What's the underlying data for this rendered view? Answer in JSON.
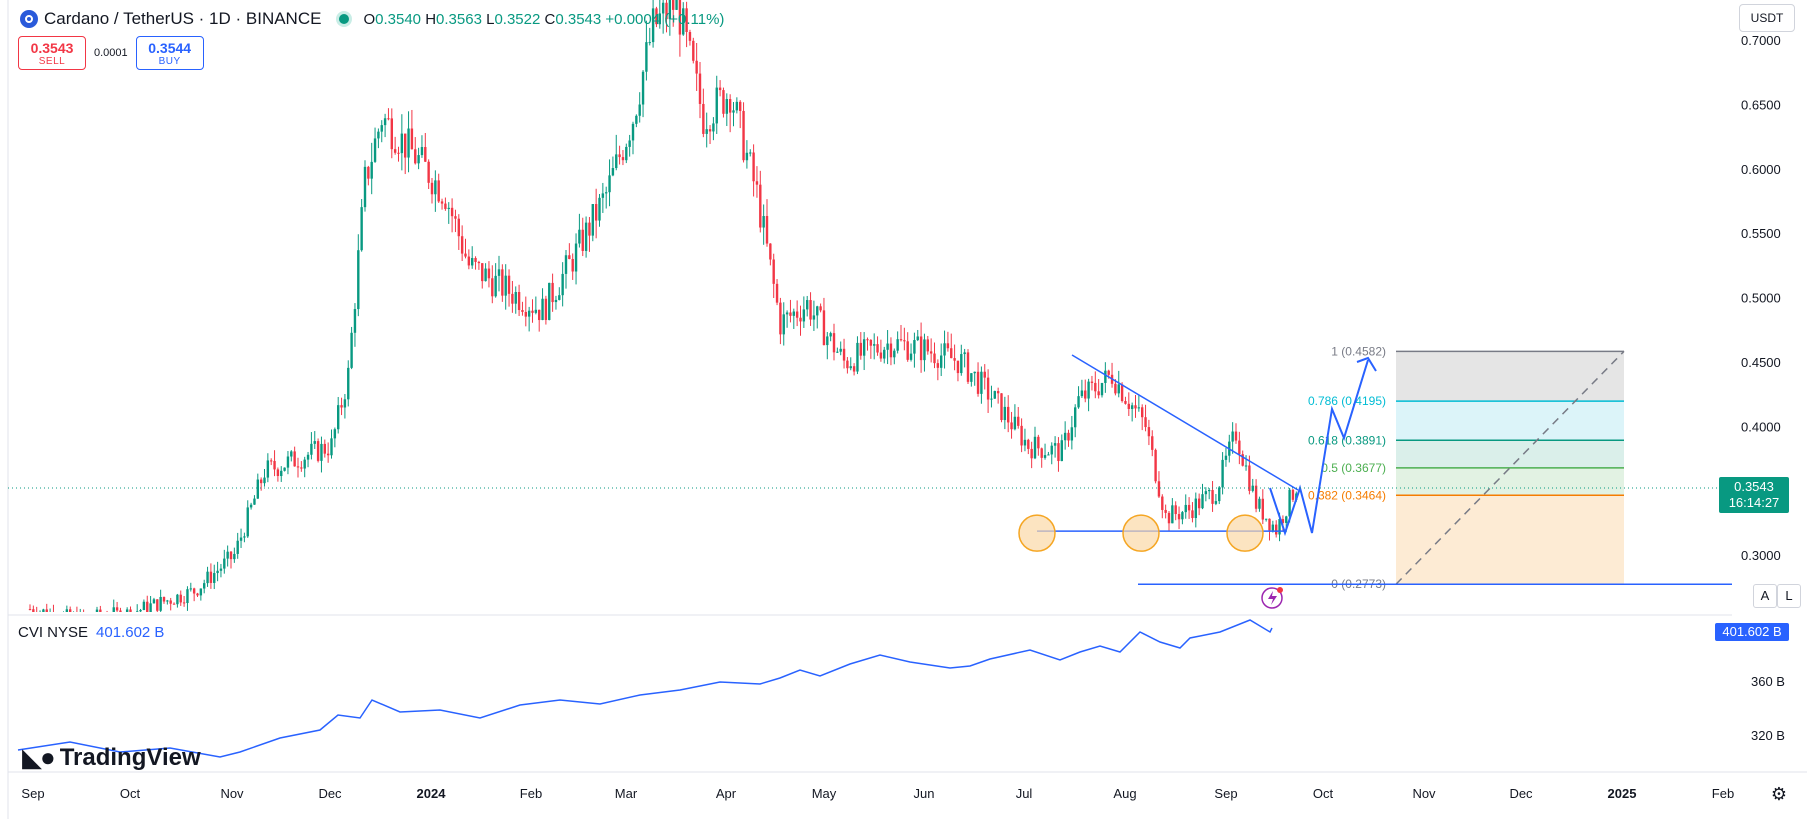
{
  "header": {
    "symbol_title": "Cardano / TetherUS · 1D · BINANCE",
    "ohlc": {
      "o_label": "O",
      "o": "0.3540",
      "h_label": "H",
      "h": "0.3563",
      "l_label": "L",
      "l": "0.3522",
      "c_label": "C",
      "c": "0.3543",
      "change": "+0.0004 (+0.11%)"
    },
    "sell": {
      "price": "0.3543",
      "label": "SELL"
    },
    "spread": "0.0001",
    "buy": {
      "price": "0.3544",
      "label": "BUY"
    },
    "currency": "USDT"
  },
  "price_axis": {
    "current_price": "0.3543",
    "countdown": "16:14:27"
  },
  "indicator": {
    "name": "CVI NYSE",
    "value": "401.602 B",
    "tag": "401.602 B",
    "tick_labels": [
      "360 B",
      "320 B"
    ]
  },
  "buttons": {
    "auto": "A",
    "log": "L"
  },
  "branding": {
    "logo_text": "TradingView"
  },
  "colors": {
    "up": "#089981",
    "down": "#f23645",
    "drawing": "#2962ff",
    "fib_half": "#4caf50",
    "fib_0382": "#f57c00",
    "fib_0618": "#089981",
    "fib_0786": "#00bcd4",
    "circle": "#f5a623"
  },
  "chart_data": {
    "type": "candlestick",
    "y_ticks": [
      0.7,
      0.65,
      0.6,
      0.55,
      0.5,
      0.45,
      0.4,
      0.3
    ],
    "y_tick_labels": [
      "0.7000",
      "0.6500",
      "0.6000",
      "0.5500",
      "0.5000",
      "0.4500",
      "0.4000",
      "0.3000"
    ],
    "ylim": [
      0.2773,
      0.71
    ],
    "x_ticks": [
      "Sep",
      "Oct",
      "Nov",
      "Dec",
      "2024",
      "Feb",
      "Mar",
      "Apr",
      "May",
      "Jun",
      "Jul",
      "Aug",
      "Sep",
      "Oct",
      "Nov",
      "Dec",
      "2025",
      "Feb"
    ],
    "series_close_path": [
      {
        "date": "2023-09-01",
        "close": 0.258
      },
      {
        "date": "2023-09-15",
        "close": 0.25
      },
      {
        "date": "2023-10-01",
        "close": 0.255
      },
      {
        "date": "2023-10-20",
        "close": 0.272
      },
      {
        "date": "2023-11-01",
        "close": 0.3
      },
      {
        "date": "2023-11-10",
        "close": 0.365
      },
      {
        "date": "2023-11-20",
        "close": 0.375
      },
      {
        "date": "2023-11-30",
        "close": 0.385
      },
      {
        "date": "2023-12-05",
        "close": 0.44
      },
      {
        "date": "2023-12-10",
        "close": 0.59
      },
      {
        "date": "2023-12-15",
        "close": 0.64
      },
      {
        "date": "2023-12-25",
        "close": 0.61
      },
      {
        "date": "2024-01-03",
        "close": 0.58
      },
      {
        "date": "2024-01-10",
        "close": 0.525
      },
      {
        "date": "2024-01-22",
        "close": 0.505
      },
      {
        "date": "2024-02-01",
        "close": 0.49
      },
      {
        "date": "2024-02-10",
        "close": 0.53
      },
      {
        "date": "2024-02-20",
        "close": 0.58
      },
      {
        "date": "2024-02-28",
        "close": 0.64
      },
      {
        "date": "2024-03-05",
        "close": 0.71
      },
      {
        "date": "2024-03-12",
        "close": 0.73
      },
      {
        "date": "2024-03-20",
        "close": 0.64
      },
      {
        "date": "2024-03-28",
        "close": 0.66
      },
      {
        "date": "2024-04-05",
        "close": 0.58
      },
      {
        "date": "2024-04-12",
        "close": 0.48
      },
      {
        "date": "2024-04-20",
        "close": 0.495
      },
      {
        "date": "2024-05-01",
        "close": 0.45
      },
      {
        "date": "2024-05-15",
        "close": 0.465
      },
      {
        "date": "2024-05-25",
        "close": 0.46
      },
      {
        "date": "2024-06-05",
        "close": 0.45
      },
      {
        "date": "2024-06-15",
        "close": 0.42
      },
      {
        "date": "2024-06-25",
        "close": 0.385
      },
      {
        "date": "2024-07-05",
        "close": 0.38
      },
      {
        "date": "2024-07-10",
        "close": 0.42
      },
      {
        "date": "2024-07-20",
        "close": 0.44
      },
      {
        "date": "2024-07-30",
        "close": 0.4
      },
      {
        "date": "2024-08-05",
        "close": 0.33
      },
      {
        "date": "2024-08-12",
        "close": 0.335
      },
      {
        "date": "2024-08-20",
        "close": 0.35
      },
      {
        "date": "2024-08-26",
        "close": 0.395
      },
      {
        "date": "2024-09-01",
        "close": 0.34
      },
      {
        "date": "2024-09-07",
        "close": 0.32
      },
      {
        "date": "2024-09-13",
        "close": 0.354
      }
    ],
    "fib_levels": [
      {
        "label": "1 (0.4582)",
        "value": 0.4582
      },
      {
        "label": "0.786 (0.4195)",
        "value": 0.4195
      },
      {
        "label": "0.618 (0.3891)",
        "value": 0.3891
      },
      {
        "label": "0.5 (0.3677)",
        "value": 0.3677
      },
      {
        "label": "0.382 (0.3464)",
        "value": 0.3464
      },
      {
        "label": "0 (0.2773)",
        "value": 0.2773
      }
    ],
    "support_level": 0.3185,
    "projection_path": [
      0.354,
      0.322,
      0.395,
      0.322,
      0.353,
      0.318,
      0.458
    ]
  }
}
